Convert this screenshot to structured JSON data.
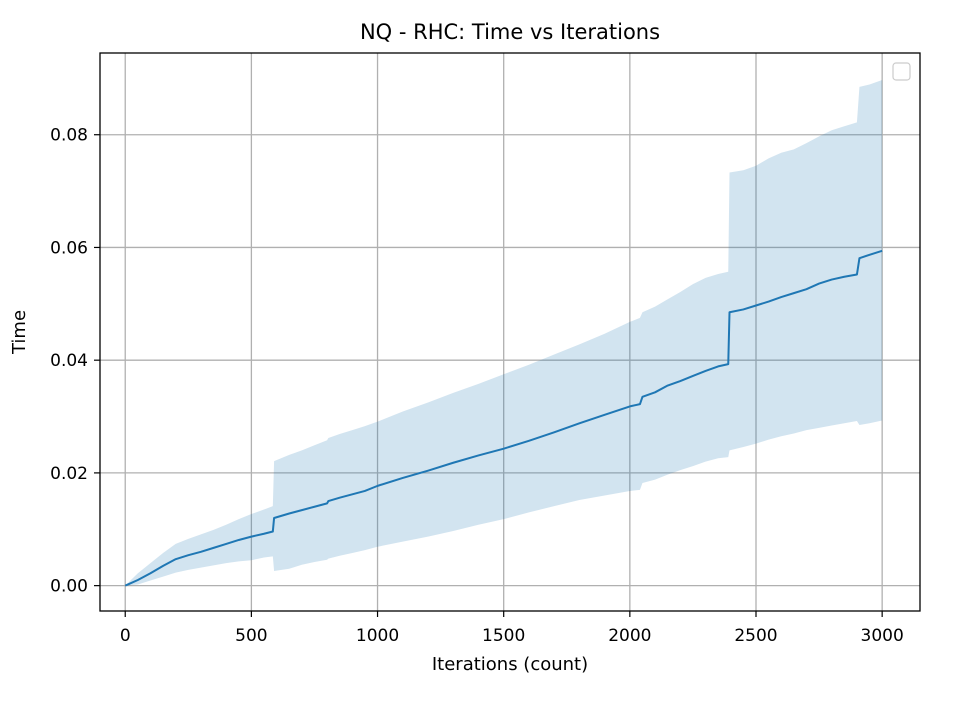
{
  "chart_data": {
    "type": "line",
    "title": "NQ - RHC: Time vs Iterations",
    "xlabel": "Iterations (count)",
    "ylabel": "Time",
    "xlim": [
      -100,
      3150
    ],
    "ylim": [
      -0.0045,
      0.0945
    ],
    "x_ticks": [
      0,
      500,
      1000,
      1500,
      2000,
      2500,
      3000
    ],
    "x_tick_labels": [
      "0",
      "500",
      "1000",
      "1500",
      "2000",
      "2500",
      "3000"
    ],
    "y_ticks": [
      0.0,
      0.02,
      0.04,
      0.06,
      0.08
    ],
    "y_tick_labels": [
      "0.00",
      "0.02",
      "0.04",
      "0.06",
      "0.08"
    ],
    "grid": true,
    "legend": {
      "placement": "top-right",
      "entries": []
    },
    "colors": {
      "line": "#1f77b4",
      "band": "#1f77b4",
      "grid": "#b0b0b0"
    },
    "series": [
      {
        "x": [
          0,
          50,
          100,
          150,
          200,
          250,
          300,
          350,
          400,
          450,
          500,
          550,
          585,
          590,
          650,
          700,
          750,
          800,
          805,
          850,
          900,
          950,
          1000,
          1100,
          1200,
          1300,
          1400,
          1500,
          1600,
          1700,
          1800,
          1900,
          2000,
          2040,
          2050,
          2100,
          2150,
          2200,
          2250,
          2300,
          2350,
          2390,
          2395,
          2450,
          2500,
          2550,
          2600,
          2650,
          2700,
          2750,
          2800,
          2850,
          2900,
          2910,
          2950,
          3000
        ],
        "mean": [
          0.0,
          0.001,
          0.0022,
          0.0035,
          0.0047,
          0.0054,
          0.006,
          0.0067,
          0.0074,
          0.0081,
          0.0087,
          0.0092,
          0.0096,
          0.012,
          0.0128,
          0.0134,
          0.014,
          0.0146,
          0.015,
          0.0156,
          0.0162,
          0.0168,
          0.0177,
          0.0191,
          0.0204,
          0.0218,
          0.0231,
          0.0243,
          0.0257,
          0.0272,
          0.0288,
          0.0303,
          0.0318,
          0.0322,
          0.0335,
          0.0343,
          0.0355,
          0.0363,
          0.0372,
          0.0381,
          0.0389,
          0.0393,
          0.0485,
          0.049,
          0.0497,
          0.0504,
          0.0512,
          0.0519,
          0.0526,
          0.0536,
          0.0543,
          0.0548,
          0.0552,
          0.0581,
          0.0587,
          0.0594
        ],
        "lower": [
          0.0,
          0.0002,
          0.0009,
          0.0016,
          0.0023,
          0.0028,
          0.0032,
          0.0036,
          0.004,
          0.0043,
          0.0045,
          0.005,
          0.0052,
          0.0026,
          0.003,
          0.0037,
          0.0042,
          0.0046,
          0.0048,
          0.0053,
          0.0058,
          0.0063,
          0.0069,
          0.0078,
          0.0087,
          0.0097,
          0.0108,
          0.0118,
          0.013,
          0.0141,
          0.0152,
          0.016,
          0.0168,
          0.017,
          0.0182,
          0.0188,
          0.0197,
          0.0205,
          0.0212,
          0.022,
          0.0226,
          0.0228,
          0.024,
          0.0246,
          0.0252,
          0.0259,
          0.0265,
          0.027,
          0.0276,
          0.028,
          0.0284,
          0.0288,
          0.0292,
          0.0285,
          0.0288,
          0.0293
        ],
        "upper": [
          0.0,
          0.0022,
          0.004,
          0.0058,
          0.0074,
          0.0083,
          0.0091,
          0.0099,
          0.0108,
          0.0118,
          0.0127,
          0.0135,
          0.0141,
          0.0221,
          0.0232,
          0.024,
          0.0249,
          0.0258,
          0.0262,
          0.0269,
          0.0276,
          0.0283,
          0.0291,
          0.0309,
          0.0325,
          0.0342,
          0.0358,
          0.0375,
          0.0392,
          0.041,
          0.0428,
          0.0447,
          0.0468,
          0.0475,
          0.0485,
          0.0495,
          0.0508,
          0.0521,
          0.0535,
          0.0546,
          0.0553,
          0.0557,
          0.0733,
          0.0737,
          0.0745,
          0.0758,
          0.0768,
          0.0774,
          0.0785,
          0.0797,
          0.0808,
          0.0815,
          0.0822,
          0.0885,
          0.0889,
          0.0897
        ]
      }
    ]
  }
}
